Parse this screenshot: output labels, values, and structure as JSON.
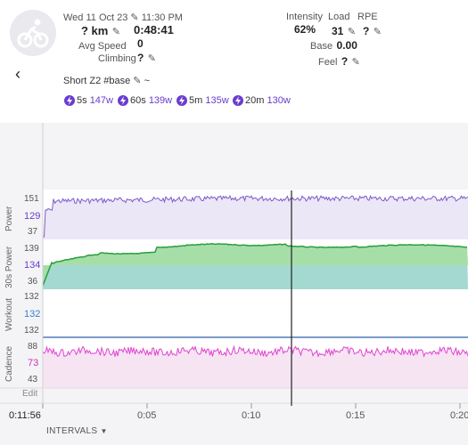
{
  "activity": {
    "date": "Wed 11 Oct 23",
    "time": "11:30 PM",
    "distance": "? km",
    "duration": "0:48:41",
    "avg_speed_label": "Avg Speed",
    "avg_speed_value": "0",
    "climbing_label": "Climbing",
    "climbing_value": "?",
    "name": "Short Z2",
    "tag": "#base",
    "tilde": "~"
  },
  "metrics": {
    "intensity_label": "Intensity",
    "intensity_value": "62%",
    "load_label": "Load",
    "load_value": "31",
    "rpe_label": "RPE",
    "rpe_value": "?",
    "base_label": "Base",
    "base_value": "0.00",
    "feel_label": "Feel",
    "feel_value": "?"
  },
  "peaks": [
    {
      "dur": "5s",
      "watts": "147w"
    },
    {
      "dur": "60s",
      "watts": "139w"
    },
    {
      "dur": "5m",
      "watts": "135w"
    },
    {
      "dur": "20m",
      "watts": "130w"
    }
  ],
  "tracks": {
    "power": {
      "label": "Power",
      "max": "151",
      "avg": "129",
      "min": "37"
    },
    "power30": {
      "label": "30s Power",
      "max": "139",
      "avg": "134",
      "min": "36"
    },
    "workout": {
      "label": "Workout",
      "max": "132",
      "avg": "132",
      "min": "132"
    },
    "cadence": {
      "label": "Cadence",
      "max": "88",
      "avg": "73",
      "min": "43"
    },
    "edit": "Edit"
  },
  "timeline": {
    "cursor_time": "0:11:56",
    "ticks": [
      "0:05",
      "0:10",
      "0:15",
      "0:20"
    ],
    "intervals_label": "INTERVALS"
  },
  "colors": {
    "power_line": "#7a5acb",
    "power_fill": "#ece7f6",
    "power30_line": "#2a9d3e",
    "power30_fill_top": "#a6dea8",
    "power30_fill_bottom": "#a3d9d0",
    "cadence_line": "#e044d0",
    "cadence_fill": "#f6e4f3",
    "accent": "#6a3ccf"
  }
}
